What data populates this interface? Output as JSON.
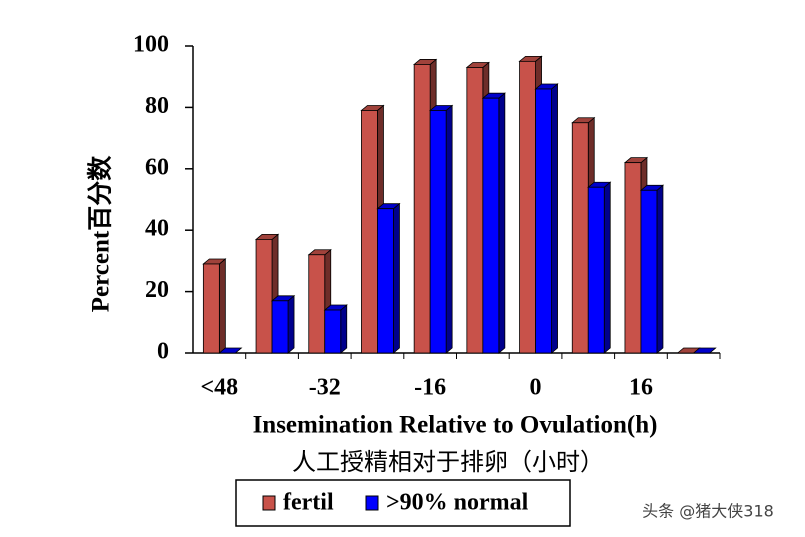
{
  "chart_data": {
    "type": "bar",
    "x_label": "Insemination Relative to Ovulation(h)",
    "x_label_cn": "人工授精相对于排卵（小时）",
    "y_label": "Percent百分数",
    "categories": [
      "<48",
      null,
      "-32",
      null,
      "-16",
      null,
      "0",
      null,
      "16",
      null
    ],
    "series": [
      {
        "name": "fertil",
        "color": "#c8524a",
        "values": [
          29,
          37,
          32,
          79,
          94,
          93,
          95,
          75,
          62,
          0
        ]
      },
      {
        "name": ">90% normal",
        "color": "#0000ff",
        "values": [
          0,
          17,
          14,
          47,
          79,
          83,
          86,
          54,
          53,
          0
        ]
      }
    ],
    "ylim": [
      0,
      100
    ],
    "yticks": [
      0,
      20,
      40,
      60,
      80,
      100
    ],
    "watermark": "头条 @猪大侠318"
  }
}
